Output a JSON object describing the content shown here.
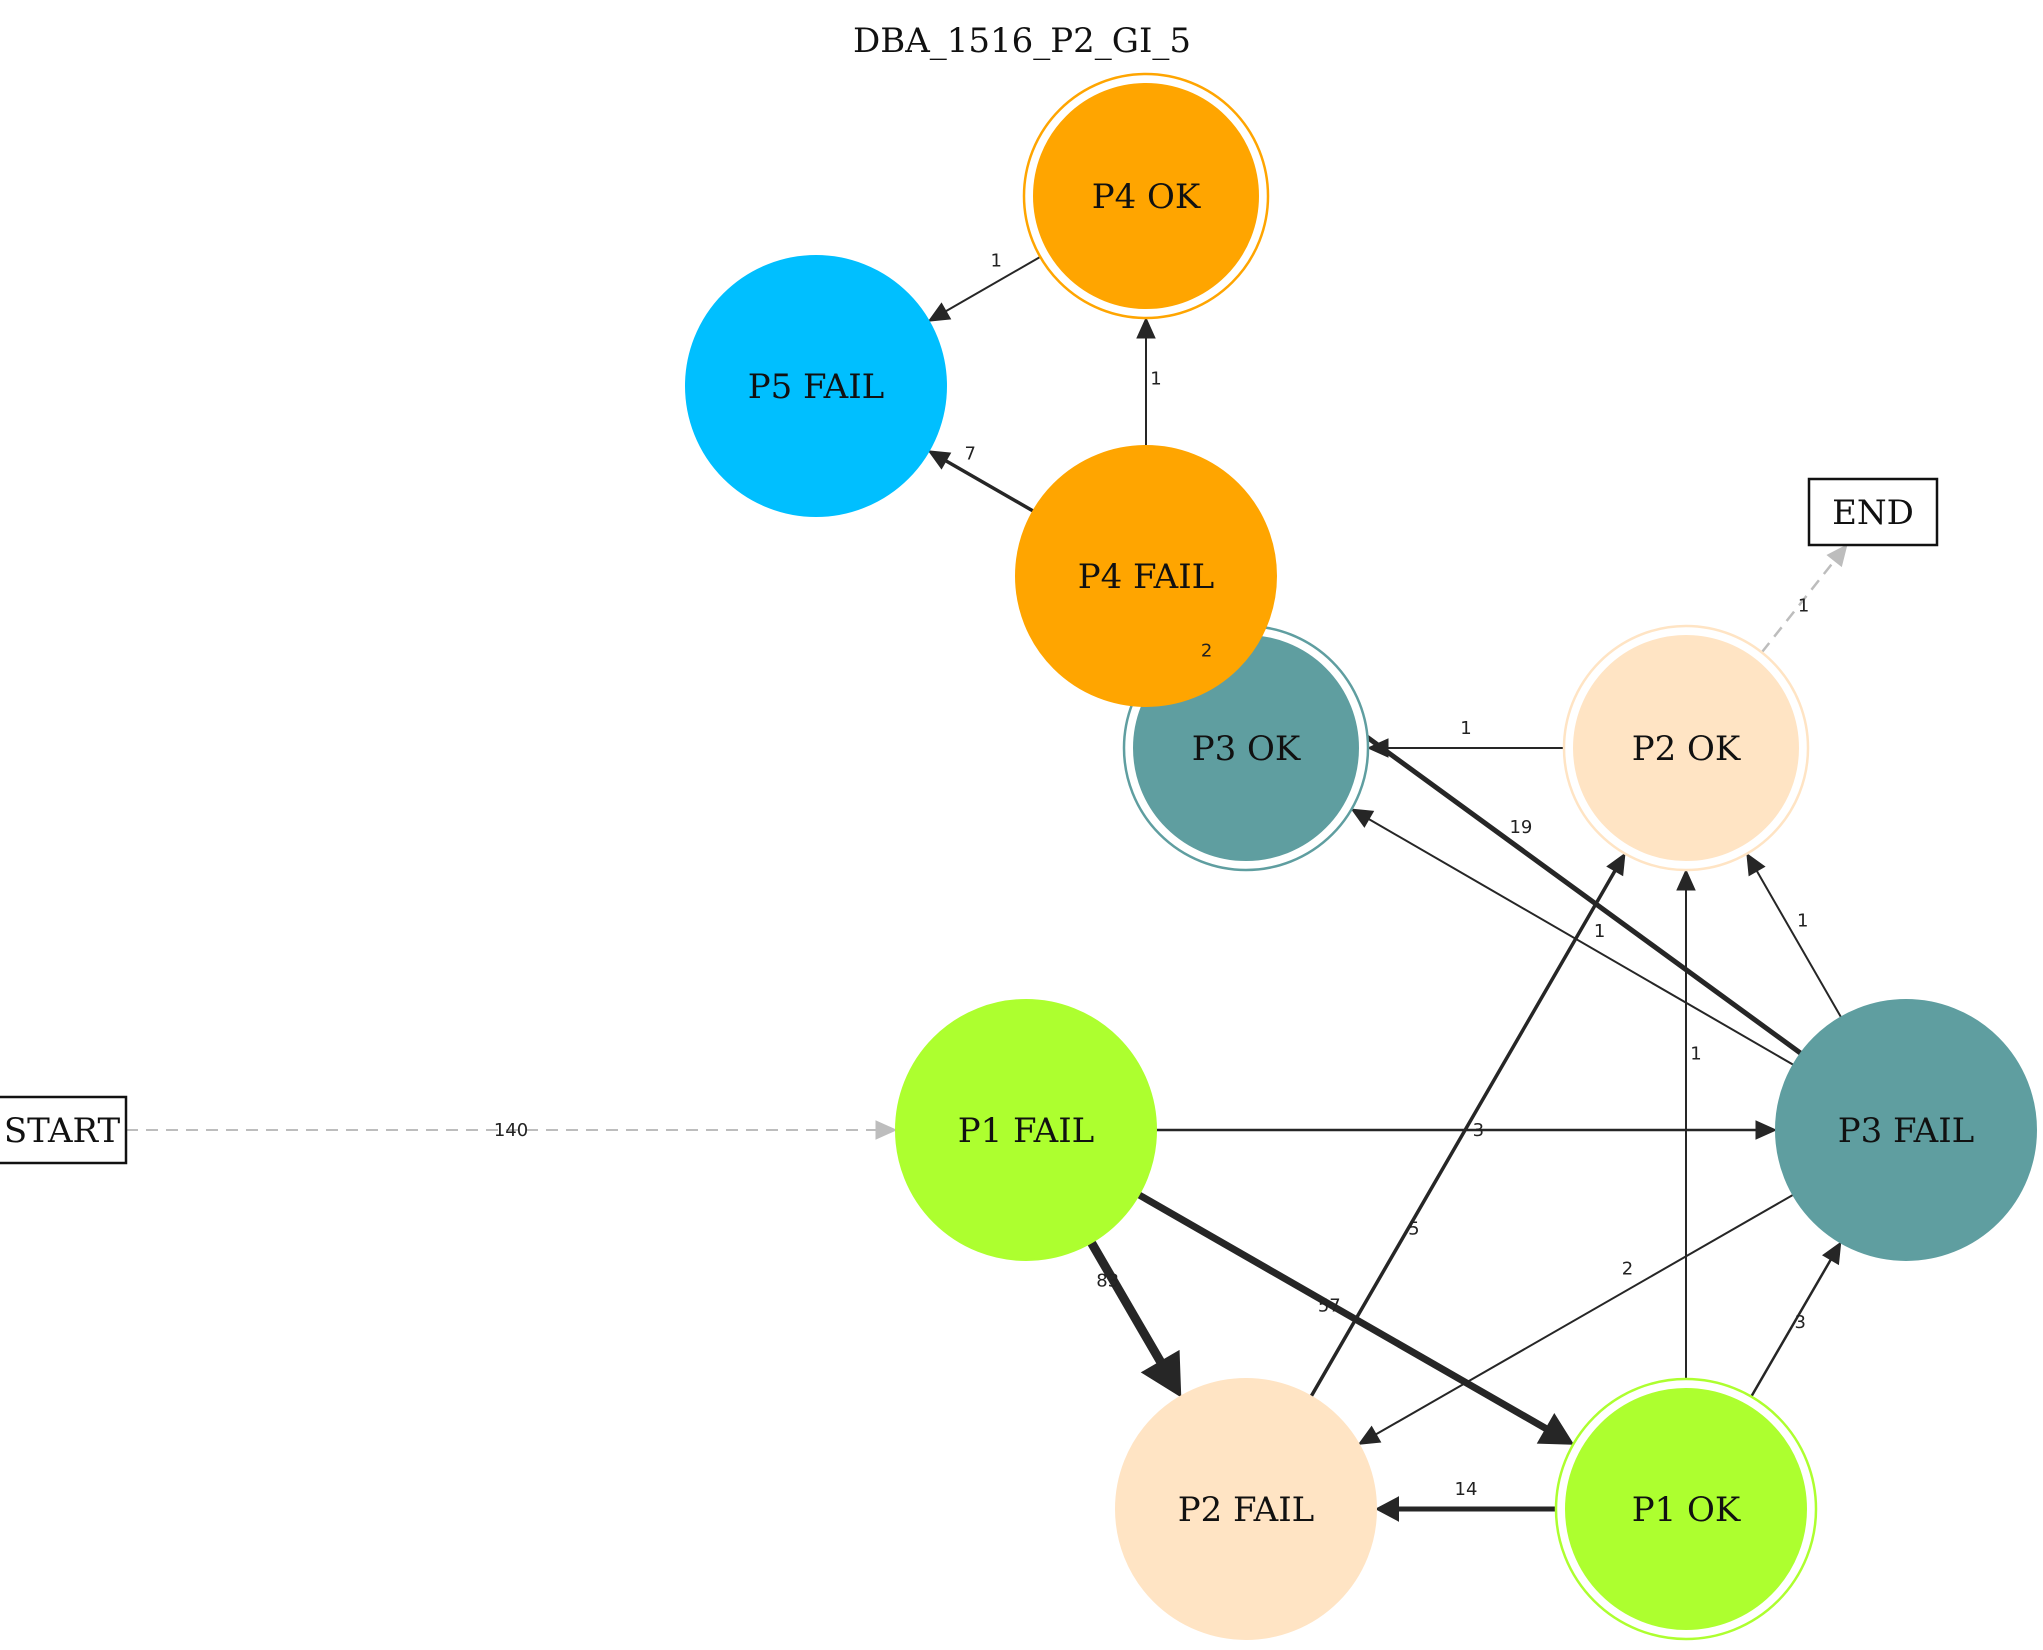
{
  "title": "DBA_1516_P2_GI_5",
  "colors": {
    "p1": "#adff2f",
    "p2": "#ffe4c4",
    "p3": "#5f9ea0",
    "p4": "#ffa500",
    "p5": "#00bfff",
    "edge": "#262626",
    "edge_dashed": "#bdbdbd"
  },
  "nodes": [
    {
      "id": "start",
      "label": "START",
      "shape": "box"
    },
    {
      "id": "end",
      "label": "END",
      "shape": "box"
    },
    {
      "id": "p1fail",
      "label": "P1 FAIL",
      "shape": "circle",
      "color": "#adff2f"
    },
    {
      "id": "p1ok",
      "label": "P1 OK",
      "shape": "doublecircle",
      "color": "#adff2f"
    },
    {
      "id": "p2fail",
      "label": "P2 FAIL",
      "shape": "circle",
      "color": "#ffe4c4"
    },
    {
      "id": "p2ok",
      "label": "P2 OK",
      "shape": "doublecircle",
      "color": "#ffe4c4"
    },
    {
      "id": "p3fail",
      "label": "P3 FAIL",
      "shape": "circle",
      "color": "#5f9ea0"
    },
    {
      "id": "p3ok",
      "label": "P3 OK",
      "shape": "doublecircle",
      "color": "#5f9ea0"
    },
    {
      "id": "p4fail",
      "label": "P4 FAIL",
      "shape": "circle",
      "color": "#ffa500"
    },
    {
      "id": "p4ok",
      "label": "P4 OK",
      "shape": "doublecircle",
      "color": "#ffa500"
    },
    {
      "id": "p5fail",
      "label": "P5 FAIL",
      "shape": "circle",
      "color": "#00bfff"
    }
  ],
  "edges": [
    {
      "from": "start",
      "to": "p1fail",
      "label": "140",
      "style": "dashed"
    },
    {
      "from": "p1fail",
      "to": "p2fail",
      "label": "83"
    },
    {
      "from": "p1fail",
      "to": "p1ok",
      "label": "57"
    },
    {
      "from": "p1fail",
      "to": "p3fail",
      "label": "3"
    },
    {
      "from": "p1ok",
      "to": "p2fail",
      "label": "14"
    },
    {
      "from": "p1ok",
      "to": "p3fail",
      "label": "3"
    },
    {
      "from": "p1ok",
      "to": "p2ok",
      "label": "1"
    },
    {
      "from": "p2fail",
      "to": "p2ok",
      "label": "5"
    },
    {
      "from": "p3fail",
      "to": "p2fail",
      "label": "2"
    },
    {
      "from": "p3fail",
      "to": "p3ok",
      "label": "1"
    },
    {
      "from": "p3fail",
      "to": "p2ok",
      "label": "1"
    },
    {
      "from": "p3fail",
      "to": "p4fail",
      "label": "19"
    },
    {
      "from": "p2ok",
      "to": "p3ok",
      "label": "1"
    },
    {
      "from": "p2ok",
      "to": "end",
      "label": "1",
      "style": "dashed"
    },
    {
      "from": "p4fail",
      "to": "p3ok",
      "label": "2"
    },
    {
      "from": "p4fail",
      "to": "p5fail",
      "label": "7"
    },
    {
      "from": "p4fail",
      "to": "p4ok",
      "label": "1"
    },
    {
      "from": "p4ok",
      "to": "p5fail",
      "label": "1"
    }
  ]
}
